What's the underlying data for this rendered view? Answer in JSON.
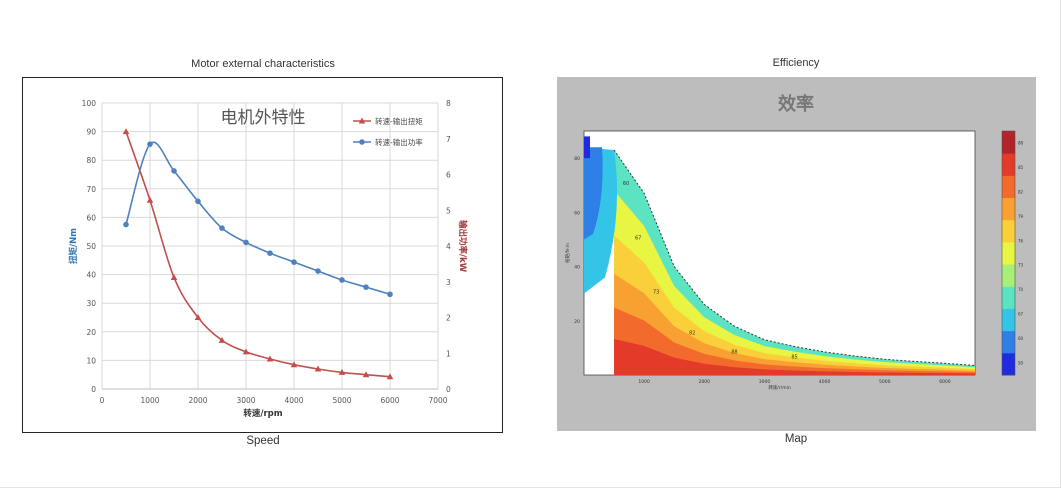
{
  "captions": {
    "left_top": "Motor external characteristics",
    "left_bottom": "Speed",
    "right_top": "Efficiency",
    "right_bottom": "Map"
  },
  "chart_data": [
    {
      "type": "line",
      "title": "电机外特性",
      "xlabel": "转速/rpm",
      "ylabel_left": "扭矩/Nm",
      "ylabel_right": "输出功率/kW",
      "xlim": [
        0,
        7000
      ],
      "ylim_left": [
        0,
        100
      ],
      "ylim_right": [
        0,
        8
      ],
      "xticks": [
        "0",
        "1000",
        "2000",
        "3000",
        "4000",
        "5000",
        "6000",
        "7000"
      ],
      "yticks_left": [
        "0",
        "10",
        "20",
        "30",
        "40",
        "50",
        "60",
        "70",
        "80",
        "90",
        "100"
      ],
      "yticks_right": [
        "0",
        "1",
        "2",
        "3",
        "4",
        "5",
        "6",
        "7",
        "8"
      ],
      "grid": true,
      "legend": "top-right",
      "series": [
        {
          "name": "转速-输出扭矩",
          "axis": "left",
          "color": "#c0504d",
          "marker": "triangle",
          "x": [
            500,
            1000,
            1500,
            2000,
            2500,
            3000,
            3500,
            4000,
            4500,
            5000,
            5500,
            6000
          ],
          "y": [
            90,
            66,
            39,
            25,
            17,
            13,
            10.5,
            8.5,
            7,
            5.8,
            5,
            4.3
          ]
        },
        {
          "name": "转速-输出功率",
          "axis": "right",
          "color": "#4f81bd",
          "marker": "circle",
          "x": [
            500,
            1000,
            1500,
            2000,
            2500,
            3000,
            3500,
            4000,
            4500,
            5000,
            5500,
            6000
          ],
          "y": [
            4.6,
            6.85,
            6.1,
            5.25,
            4.5,
            4.1,
            3.8,
            3.55,
            3.3,
            3.05,
            2.85,
            2.65
          ]
        }
      ]
    },
    {
      "type": "heatmap",
      "title": "效率",
      "xlabel": "转速/r/min",
      "ylabel": "扭矩/N·m",
      "xlim": [
        0,
        6500
      ],
      "ylim": [
        0,
        90
      ],
      "xticks": [
        "1000",
        "2000",
        "3000",
        "4000",
        "5000",
        "6000"
      ],
      "yticks": [
        "20",
        "40",
        "60",
        "80"
      ],
      "colorbar_ticks": [
        "50",
        "60",
        "67",
        "70",
        "73",
        "76",
        "79",
        "82",
        "85",
        "88"
      ],
      "colorscale": [
        "#1e2be0",
        "#2e7fe6",
        "#33c4e8",
        "#5be3c2",
        "#a9ef77",
        "#e8f542",
        "#fad03a",
        "#f9a033",
        "#f26b2c",
        "#e33a2a",
        "#b2242a"
      ],
      "boundary_torque": [
        [
          500,
          83
        ],
        [
          1000,
          67
        ],
        [
          1500,
          40
        ],
        [
          2000,
          26
        ],
        [
          2500,
          18
        ],
        [
          3000,
          13
        ],
        [
          3500,
          10.5
        ],
        [
          4000,
          8.5
        ],
        [
          4500,
          7
        ],
        [
          5000,
          5.8
        ],
        [
          5500,
          5
        ],
        [
          6000,
          4.3
        ],
        [
          6500,
          3.5
        ]
      ],
      "efficiency_zones": [
        {
          "label": "88",
          "x": 2500,
          "y": 8
        },
        {
          "label": "85",
          "x": 3500,
          "y": 6
        },
        {
          "label": "82",
          "x": 1800,
          "y": 15
        },
        {
          "label": "73",
          "x": 1200,
          "y": 30
        },
        {
          "label": "67",
          "x": 900,
          "y": 50
        },
        {
          "label": "60",
          "x": 700,
          "y": 70
        }
      ]
    }
  ]
}
